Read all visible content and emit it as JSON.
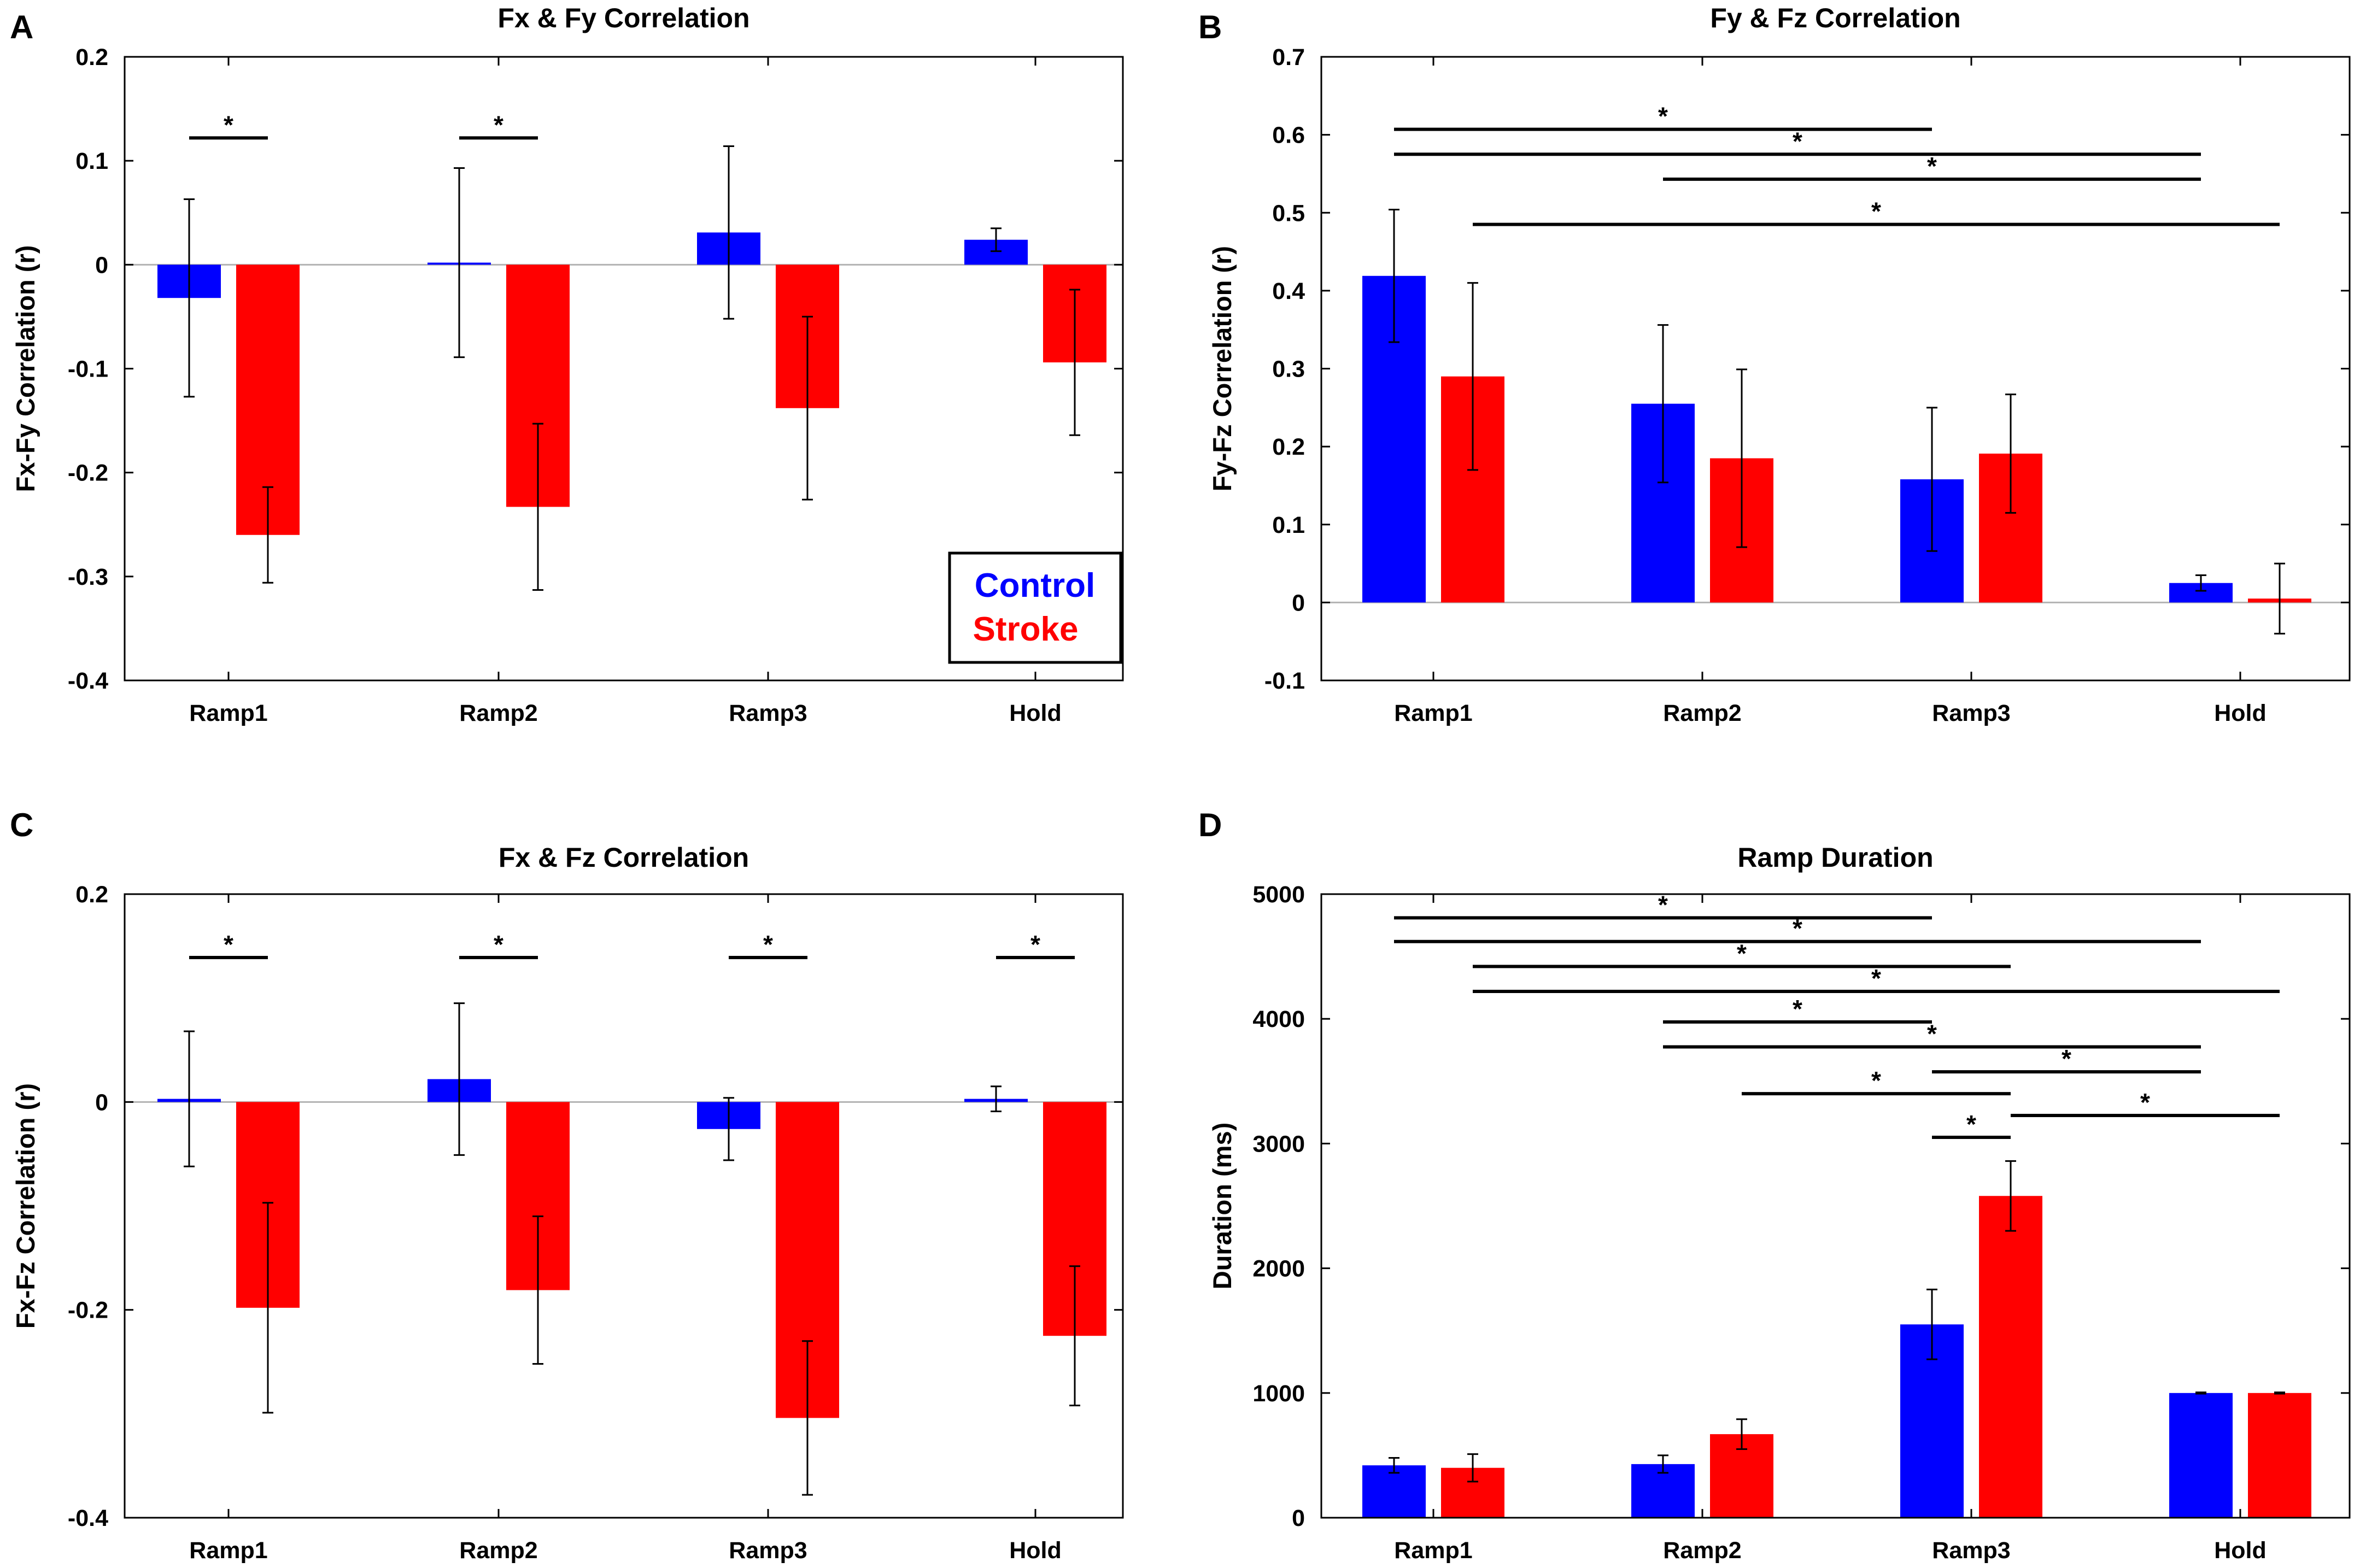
{
  "colors": {
    "control": "#0000ff",
    "stroke": "#ff0000",
    "axis": "#000000",
    "zero_line": "#b3b3b3",
    "error": "#000000"
  },
  "legend": {
    "control_label": "Control",
    "stroke_label": "Stroke",
    "panel": "A"
  },
  "chart_data": [
    {
      "panel": "A",
      "type": "bar",
      "title": "Fx & Fy Correlation",
      "xlabel": "",
      "ylabel": "Fx-Fy Correlation (r)",
      "categories": [
        "Ramp1",
        "Ramp2",
        "Ramp3",
        "Hold"
      ],
      "ylim": [
        -0.4,
        0.2
      ],
      "yticks": [
        0.2,
        0.1,
        0,
        -0.1,
        -0.2,
        -0.3,
        -0.4
      ],
      "ytick_labels": [
        "0.2",
        "0.1",
        "0",
        "-0.1",
        "-0.2",
        "-0.3",
        "-0.4"
      ],
      "series": [
        {
          "name": "Control",
          "values": [
            -0.032,
            0.002,
            0.031,
            0.024
          ],
          "errors": [
            0.095,
            0.091,
            0.083,
            0.011
          ]
        },
        {
          "name": "Stroke",
          "values": [
            -0.26,
            -0.233,
            -0.138,
            -0.094
          ],
          "errors": [
            0.046,
            0.08,
            0.088,
            0.07
          ]
        }
      ],
      "significance": [
        {
          "from": [
            0,
            0
          ],
          "to": [
            0,
            1
          ],
          "level": 0.122,
          "label": "*"
        },
        {
          "from": [
            1,
            0
          ],
          "to": [
            1,
            1
          ],
          "level": 0.122,
          "label": "*"
        }
      ]
    },
    {
      "panel": "B",
      "type": "bar",
      "title": "Fy & Fz Correlation",
      "xlabel": "",
      "ylabel": "Fy-Fz Correlation (r)",
      "categories": [
        "Ramp1",
        "Ramp2",
        "Ramp3",
        "Hold"
      ],
      "ylim": [
        -0.1,
        0.7
      ],
      "yticks": [
        0.7,
        0.6,
        0.5,
        0.4,
        0.3,
        0.2,
        0.1,
        0,
        -0.1
      ],
      "ytick_labels": [
        "0.7",
        "0.6",
        "0.5",
        "0.4",
        "0.3",
        "0.2",
        "0.1",
        "0",
        "-0.1"
      ],
      "series": [
        {
          "name": "Control",
          "values": [
            0.419,
            0.255,
            0.158,
            0.025
          ],
          "errors": [
            0.085,
            0.101,
            0.092,
            0.01
          ]
        },
        {
          "name": "Stroke",
          "values": [
            0.29,
            0.185,
            0.191,
            0.005
          ],
          "errors": [
            0.12,
            0.114,
            0.076,
            0.045
          ]
        }
      ],
      "significance": [
        {
          "from": [
            0,
            0
          ],
          "to": [
            2,
            0
          ],
          "level": 0.607,
          "label": "*"
        },
        {
          "from": [
            0,
            0
          ],
          "to": [
            3,
            0
          ],
          "level": 0.575,
          "label": "*"
        },
        {
          "from": [
            1,
            0
          ],
          "to": [
            3,
            0
          ],
          "level": 0.543,
          "label": "*"
        },
        {
          "from": [
            0,
            1
          ],
          "to": [
            3,
            1
          ],
          "level": 0.485,
          "label": "*"
        }
      ]
    },
    {
      "panel": "C",
      "type": "bar",
      "title": "Fx & Fz Correlation",
      "xlabel": "",
      "ylabel": "Fx-Fz Correlation (r)",
      "categories": [
        "Ramp1",
        "Ramp2",
        "Ramp3",
        "Hold"
      ],
      "ylim": [
        -0.4,
        0.2
      ],
      "yticks": [
        0.2,
        0,
        -0.2,
        -0.4
      ],
      "ytick_labels": [
        "0.2",
        "0",
        "-0.2",
        "-0.4"
      ],
      "series": [
        {
          "name": "Control",
          "values": [
            0.003,
            0.022,
            -0.026,
            0.003
          ],
          "errors": [
            0.065,
            0.073,
            0.03,
            0.012
          ]
        },
        {
          "name": "Stroke",
          "values": [
            -0.198,
            -0.181,
            -0.304,
            -0.225
          ],
          "errors": [
            0.101,
            0.071,
            0.074,
            0.067
          ]
        }
      ],
      "significance": [
        {
          "from": [
            0,
            0
          ],
          "to": [
            0,
            1
          ],
          "level": 0.139,
          "label": "*"
        },
        {
          "from": [
            1,
            0
          ],
          "to": [
            1,
            1
          ],
          "level": 0.139,
          "label": "*"
        },
        {
          "from": [
            2,
            0
          ],
          "to": [
            2,
            1
          ],
          "level": 0.139,
          "label": "*"
        },
        {
          "from": [
            3,
            0
          ],
          "to": [
            3,
            1
          ],
          "level": 0.139,
          "label": "*"
        }
      ]
    },
    {
      "panel": "D",
      "type": "bar",
      "title": "Ramp Duration",
      "xlabel": "",
      "ylabel": "Duration (ms)",
      "categories": [
        "Ramp1",
        "Ramp2",
        "Ramp3",
        "Hold"
      ],
      "ylim": [
        0,
        5000
      ],
      "yticks": [
        5000,
        4000,
        3000,
        2000,
        1000,
        0
      ],
      "ytick_labels": [
        "5000",
        "4000",
        "3000",
        "2000",
        "1000",
        "0"
      ],
      "series": [
        {
          "name": "Control",
          "values": [
            420,
            430,
            1550,
            1000
          ],
          "errors": [
            60,
            70,
            280,
            5
          ]
        },
        {
          "name": "Stroke",
          "values": [
            400,
            670,
            2580,
            1000
          ],
          "errors": [
            110,
            120,
            280,
            5
          ]
        }
      ],
      "significance": [
        {
          "from": [
            0,
            0
          ],
          "to": [
            2,
            0
          ],
          "level": 4810,
          "label": "*"
        },
        {
          "from": [
            0,
            0
          ],
          "to": [
            3,
            0
          ],
          "level": 4620,
          "label": "*"
        },
        {
          "from": [
            0,
            1
          ],
          "to": [
            2,
            1
          ],
          "level": 4420,
          "label": "*"
        },
        {
          "from": [
            0,
            1
          ],
          "to": [
            3,
            1
          ],
          "level": 4220,
          "label": "*"
        },
        {
          "from": [
            1,
            0
          ],
          "to": [
            2,
            0
          ],
          "level": 3975,
          "label": "*"
        },
        {
          "from": [
            1,
            0
          ],
          "to": [
            3,
            0
          ],
          "level": 3775,
          "label": "*"
        },
        {
          "from": [
            2,
            0
          ],
          "to": [
            3,
            0
          ],
          "level": 3575,
          "label": "*"
        },
        {
          "from": [
            1,
            1
          ],
          "to": [
            2,
            1
          ],
          "level": 3400,
          "label": "*"
        },
        {
          "from": [
            2,
            1
          ],
          "to": [
            3,
            1
          ],
          "level": 3225,
          "label": "*"
        },
        {
          "from": [
            2,
            0
          ],
          "to": [
            2,
            1
          ],
          "level": 3050,
          "label": "*"
        }
      ]
    }
  ]
}
